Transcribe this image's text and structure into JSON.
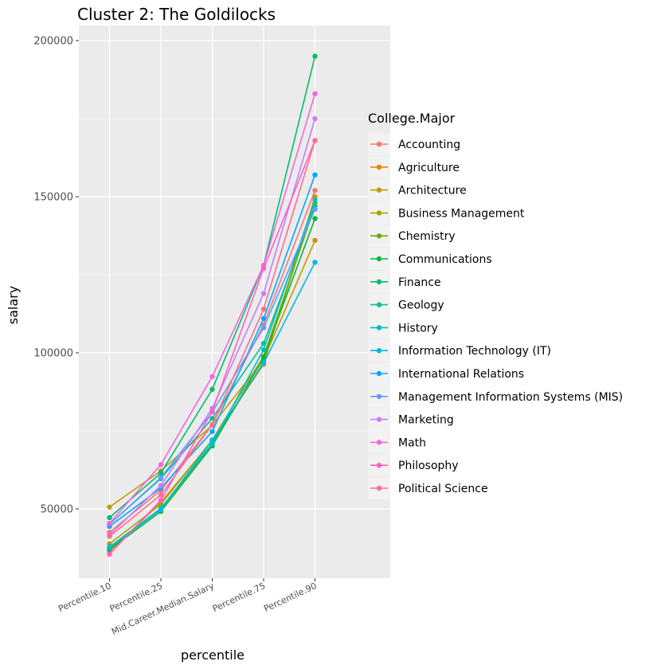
{
  "chart_data": {
    "type": "line",
    "title": "Cluster 2: The Goldilocks",
    "xlabel": "percentile",
    "ylabel": "salary",
    "categories": [
      "Percentile.10",
      "Percentile.25",
      "Mid.Career.Median.Salary",
      "Percentile.75",
      "Percentile.90"
    ],
    "yticks": [
      50000,
      100000,
      150000,
      200000
    ],
    "ytick_labels": [
      "50000",
      "100000",
      "150000",
      "200000"
    ],
    "legend_title": "College.Major",
    "legend_position": "right",
    "grid": true,
    "series": [
      {
        "name": "Accounting",
        "color": "#F8766D",
        "values": [
          42500,
          56000,
          77000,
          109000,
          152000
        ]
      },
      {
        "name": "Agriculture",
        "color": "#E58700",
        "values": [
          36300,
          52100,
          71900,
          96300,
          150000
        ]
      },
      {
        "name": "Architecture",
        "color": "#C99800",
        "values": [
          50600,
          62200,
          76800,
          97800,
          136000
        ]
      },
      {
        "name": "Business Management",
        "color": "#A3A500",
        "values": [
          38800,
          51500,
          72100,
          98900,
          147000
        ]
      },
      {
        "name": "Chemistry",
        "color": "#6BB100",
        "values": [
          37400,
          49900,
          70800,
          97100,
          148000
        ]
      },
      {
        "name": "Communications",
        "color": "#00BA38",
        "values": [
          37000,
          49200,
          70200,
          98500,
          143000
        ]
      },
      {
        "name": "Finance",
        "color": "#00BE67",
        "values": [
          47200,
          61500,
          88300,
          128000,
          195000
        ]
      },
      {
        "name": "Geology",
        "color": "#00C19A",
        "values": [
          45100,
          59700,
          79000,
          103000,
          147000
        ]
      },
      {
        "name": "History",
        "color": "#00BFC4",
        "values": [
          37800,
          50200,
          71000,
          101000,
          149000
        ]
      },
      {
        "name": "Information Technology (IT)",
        "color": "#00B9E3",
        "values": [
          37700,
          49800,
          72000,
          96700,
          129000
        ]
      },
      {
        "name": "International Relations",
        "color": "#00A9FF",
        "values": [
          44400,
          56700,
          74800,
          111000,
          157000
        ]
      },
      {
        "name": "Management Information Systems (MIS)",
        "color": "#619CFF",
        "values": [
          45100,
          60000,
          81000,
          108000,
          146000
        ]
      },
      {
        "name": "Marketing",
        "color": "#C77CFF",
        "values": [
          41600,
          57500,
          82200,
          119000,
          175000
        ]
      },
      {
        "name": "Math",
        "color": "#F564E3",
        "values": [
          45400,
          64200,
          92400,
          128000,
          183000
        ]
      },
      {
        "name": "Philosophy",
        "color": "#FF61C3",
        "values": [
          35500,
          52800,
          81200,
          127000,
          168000
        ]
      },
      {
        "name": "Political Science",
        "color": "#FF6C91",
        "values": [
          41200,
          54500,
          77000,
          114000,
          168000
        ]
      }
    ]
  }
}
